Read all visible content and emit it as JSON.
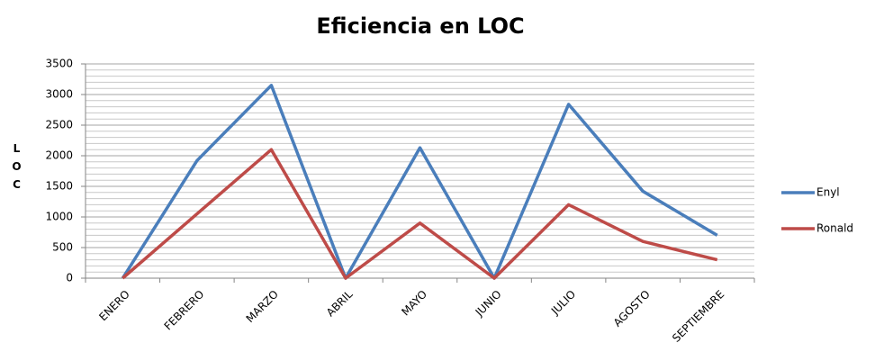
{
  "chart_data": {
    "type": "line",
    "title": "Eficiencia en LOC",
    "y_label": "LOC",
    "categories": [
      "ENERO",
      "FEBRERO",
      "MARZO",
      "ABRIL",
      "MAYO",
      "JUNIO",
      "JULIO",
      "AGOSTO",
      "SEPTIEMBRE"
    ],
    "series": [
      {
        "name": "Enyl",
        "color": "#4a7ebb",
        "values": [
          0,
          1920,
          3150,
          0,
          2130,
          0,
          2840,
          1420,
          700
        ]
      },
      {
        "name": "Ronald",
        "color": "#be4b48",
        "values": [
          0,
          1050,
          2100,
          0,
          900,
          0,
          1200,
          600,
          300
        ]
      }
    ],
    "ylim": [
      0,
      3500
    ],
    "yticks": [
      0,
      500,
      1000,
      1500,
      2000,
      2500,
      3000,
      3500
    ],
    "grid": true,
    "legend": "right"
  }
}
